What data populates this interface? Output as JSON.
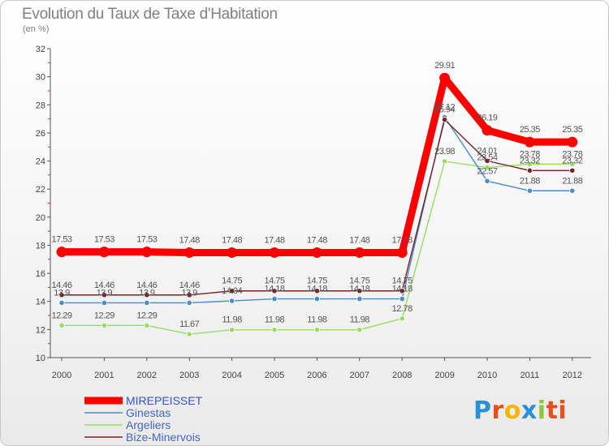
{
  "chart_data": {
    "type": "line",
    "title": "Evolution du Taux de Taxe d'Habitation",
    "ylabel": "(en %)",
    "xlabel": "",
    "ylim": [
      10,
      32
    ],
    "yticks": [
      10,
      12,
      14,
      16,
      18,
      20,
      22,
      24,
      26,
      28,
      30,
      32
    ],
    "categories": [
      "2000",
      "2001",
      "2002",
      "2003",
      "2004",
      "2005",
      "2006",
      "2007",
      "2008",
      "2009",
      "2010",
      "2011",
      "2012"
    ],
    "series": [
      {
        "name": "MIREPEISSET",
        "color": "#ff0000",
        "values": [
          17.53,
          17.53,
          17.53,
          17.48,
          17.48,
          17.48,
          17.48,
          17.48,
          17.48,
          29.91,
          26.19,
          25.35,
          25.35
        ],
        "labels": [
          "17.53",
          "17.53",
          "17.53",
          "17.48",
          "17.48",
          "17.48",
          "17.48",
          "17.48",
          "17.48",
          "29.91",
          "26.19",
          "25.35",
          "25.35"
        ]
      },
      {
        "name": "Ginestas",
        "color": "#4a8ccc",
        "values": [
          13.9,
          13.9,
          13.9,
          13.9,
          14.04,
          14.18,
          14.18,
          14.18,
          14.18,
          27.12,
          22.57,
          21.88,
          21.88
        ],
        "labels": [
          "13.9",
          "13.9",
          "13.9",
          "13.9",
          "14.04",
          "14.18",
          "14.18",
          "14.18",
          "14.18",
          "27.12",
          "22.57",
          "21.88",
          "21.88"
        ]
      },
      {
        "name": "Argeliers",
        "color": "#99dd66",
        "values": [
          12.29,
          12.29,
          12.29,
          11.67,
          11.98,
          11.98,
          11.98,
          11.98,
          12.78,
          23.98,
          23.54,
          23.78,
          23.78
        ],
        "labels": [
          "12.29",
          "12.29",
          "12.29",
          "11.67",
          "11.98",
          "11.98",
          "11.98",
          "11.98",
          "12.78",
          "23.98",
          "23.54",
          "23.78",
          "23.78"
        ]
      },
      {
        "name": "Bize-Minervois",
        "color": "#772222",
        "values": [
          14.46,
          14.46,
          14.46,
          14.46,
          14.75,
          14.75,
          14.75,
          14.75,
          14.75,
          26.94,
          24.01,
          23.32,
          23.32
        ],
        "labels": [
          "14.46",
          "14.46",
          "14.46",
          "14.46",
          "14.75",
          "14.75",
          "14.75",
          "14.75",
          "14.75",
          "26.94",
          "24.01",
          "23.32",
          "23.32"
        ]
      }
    ]
  },
  "logo": {
    "letters": [
      "P",
      "r",
      "o",
      "x",
      "i",
      "ti"
    ]
  }
}
